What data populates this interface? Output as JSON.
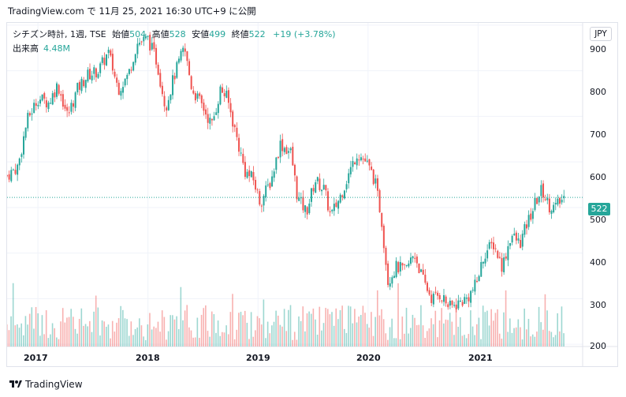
{
  "header": {
    "source_line": "TradingView.com で 11月 25, 2021 16:30 UTC+9 に公開"
  },
  "legend": {
    "symbol": "シチズン時計, 1週, TSE",
    "open_label": "始値",
    "open_value": "504",
    "high_label": "高値",
    "high_value": "528",
    "low_label": "安値",
    "low_value": "499",
    "close_label": "終値",
    "close_value": "522",
    "change": "+19 (+3.78%)",
    "volume_label": "出来高",
    "volume_value": "4.48M"
  },
  "currency_button": "JPY",
  "last_price_label": "522",
  "price_axis": [
    "900",
    "800",
    "700",
    "600",
    "500",
    "400",
    "300",
    "200"
  ],
  "time_axis": [
    "2017",
    "2018",
    "2019",
    "2020",
    "2021"
  ],
  "footer": {
    "brand": "TradingView"
  },
  "colors": {
    "up": "#26a69a",
    "down": "#ef5350",
    "grid": "#f0f3fa"
  },
  "chart_data": {
    "type": "candlestick",
    "title": "シチズン時計, 1週, TSE",
    "ylim": [
      195,
      905
    ],
    "x_start_year": 2016.72,
    "x_end_year": 2021.95,
    "weekly_close_path": [
      {
        "x": 2016.72,
        "y": 570
      },
      {
        "x": 2016.82,
        "y": 590
      },
      {
        "x": 2016.9,
        "y": 690
      },
      {
        "x": 2017.0,
        "y": 740
      },
      {
        "x": 2017.1,
        "y": 730
      },
      {
        "x": 2017.18,
        "y": 770
      },
      {
        "x": 2017.27,
        "y": 700
      },
      {
        "x": 2017.36,
        "y": 760
      },
      {
        "x": 2017.45,
        "y": 790
      },
      {
        "x": 2017.55,
        "y": 800
      },
      {
        "x": 2017.64,
        "y": 840
      },
      {
        "x": 2017.73,
        "y": 760
      },
      {
        "x": 2017.82,
        "y": 790
      },
      {
        "x": 2017.9,
        "y": 860
      },
      {
        "x": 2018.0,
        "y": 870
      },
      {
        "x": 2018.08,
        "y": 820
      },
      {
        "x": 2018.16,
        "y": 720
      },
      {
        "x": 2018.24,
        "y": 790
      },
      {
        "x": 2018.33,
        "y": 850
      },
      {
        "x": 2018.4,
        "y": 760
      },
      {
        "x": 2018.5,
        "y": 720
      },
      {
        "x": 2018.58,
        "y": 680
      },
      {
        "x": 2018.66,
        "y": 760
      },
      {
        "x": 2018.72,
        "y": 740
      },
      {
        "x": 2018.8,
        "y": 660
      },
      {
        "x": 2018.88,
        "y": 580
      },
      {
        "x": 2018.96,
        "y": 560
      },
      {
        "x": 2019.02,
        "y": 510
      },
      {
        "x": 2019.12,
        "y": 560
      },
      {
        "x": 2019.2,
        "y": 640
      },
      {
        "x": 2019.3,
        "y": 620
      },
      {
        "x": 2019.36,
        "y": 520
      },
      {
        "x": 2019.44,
        "y": 490
      },
      {
        "x": 2019.52,
        "y": 560
      },
      {
        "x": 2019.6,
        "y": 540
      },
      {
        "x": 2019.66,
        "y": 480
      },
      {
        "x": 2019.74,
        "y": 520
      },
      {
        "x": 2019.82,
        "y": 570
      },
      {
        "x": 2019.9,
        "y": 620
      },
      {
        "x": 2019.98,
        "y": 600
      },
      {
        "x": 2020.06,
        "y": 560
      },
      {
        "x": 2020.12,
        "y": 480
      },
      {
        "x": 2020.18,
        "y": 340
      },
      {
        "x": 2020.26,
        "y": 370
      },
      {
        "x": 2020.34,
        "y": 360
      },
      {
        "x": 2020.42,
        "y": 400
      },
      {
        "x": 2020.5,
        "y": 340
      },
      {
        "x": 2020.58,
        "y": 300
      },
      {
        "x": 2020.66,
        "y": 310
      },
      {
        "x": 2020.74,
        "y": 280
      },
      {
        "x": 2020.82,
        "y": 290
      },
      {
        "x": 2020.9,
        "y": 300
      },
      {
        "x": 2020.98,
        "y": 330
      },
      {
        "x": 2021.06,
        "y": 400
      },
      {
        "x": 2021.14,
        "y": 420
      },
      {
        "x": 2021.22,
        "y": 370
      },
      {
        "x": 2021.3,
        "y": 440
      },
      {
        "x": 2021.38,
        "y": 420
      },
      {
        "x": 2021.44,
        "y": 460
      },
      {
        "x": 2021.52,
        "y": 510
      },
      {
        "x": 2021.58,
        "y": 540
      },
      {
        "x": 2021.64,
        "y": 505
      },
      {
        "x": 2021.7,
        "y": 500
      },
      {
        "x": 2021.78,
        "y": 522
      }
    ]
  }
}
